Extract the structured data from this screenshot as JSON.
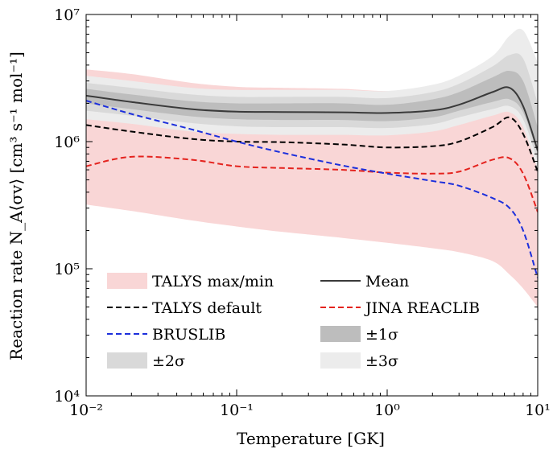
{
  "chart_data": {
    "type": "area",
    "xlabel": "Temperature [GK]",
    "ylabel": "Reaction rate N_A⟨σv⟩ [cm³ s⁻¹ mol⁻¹]",
    "x_scale": "log",
    "y_scale": "log",
    "xlim": [
      0.01,
      10
    ],
    "ylim": [
      10000,
      10000000
    ],
    "x_tick_labels": [
      "10⁻²",
      "10⁻¹",
      "10⁰",
      "10¹"
    ],
    "y_tick_labels": [
      "10⁴",
      "10⁵",
      "10⁶",
      "10⁷"
    ],
    "x_ticks": [
      0.01,
      0.1,
      1,
      10
    ],
    "y_ticks": [
      10000,
      100000,
      1000000,
      10000000
    ],
    "grid": false,
    "legend_position": "bottom-left",
    "x": [
      0.01,
      0.02,
      0.05,
      0.1,
      0.2,
      0.5,
      1.0,
      2.0,
      3.0,
      5.0,
      6.5,
      8.0,
      10.0
    ],
    "bands": [
      {
        "name": "TALYS max/min",
        "color": "#f9d6d6",
        "lower": [
          320000,
          285000,
          240000,
          215000,
          195000,
          175000,
          160000,
          145000,
          135000,
          115000,
          90000,
          70000,
          50000
        ],
        "upper": [
          3700000,
          3400000,
          2900000,
          2700000,
          2650000,
          2600000,
          2500000,
          2700000,
          3200000,
          4300000,
          5500000,
          5000000,
          2800000
        ]
      },
      {
        "name": "±3σ",
        "color": "#ececec",
        "lower": [
          1500000,
          1380000,
          1200000,
          1150000,
          1130000,
          1130000,
          1120000,
          1200000,
          1350000,
          1600000,
          1700000,
          1300000,
          600000
        ],
        "upper": [
          3300000,
          3000000,
          2650000,
          2550000,
          2550000,
          2550000,
          2500000,
          2800000,
          3300000,
          4700000,
          6800000,
          7500000,
          4200000
        ]
      },
      {
        "name": "±2σ",
        "color": "#d9d9d9",
        "lower": [
          1750000,
          1600000,
          1400000,
          1320000,
          1300000,
          1300000,
          1280000,
          1370000,
          1550000,
          1800000,
          1900000,
          1500000,
          700000
        ],
        "upper": [
          2900000,
          2650000,
          2350000,
          2250000,
          2250000,
          2250000,
          2200000,
          2450000,
          2850000,
          3900000,
          4800000,
          4500000,
          2000000
        ]
      },
      {
        "name": "±1σ",
        "color": "#bdbdbd",
        "lower": [
          2000000,
          1800000,
          1580000,
          1500000,
          1480000,
          1480000,
          1450000,
          1550000,
          1750000,
          2050000,
          2150000,
          1700000,
          800000
        ],
        "upper": [
          2600000,
          2350000,
          2080000,
          2000000,
          2000000,
          2000000,
          1950000,
          2150000,
          2450000,
          3200000,
          3600000,
          3000000,
          1300000
        ]
      }
    ],
    "series": [
      {
        "name": "Mean",
        "style": "solid",
        "color": "#3a3a3a",
        "values": [
          2300000,
          2050000,
          1800000,
          1720000,
          1710000,
          1700000,
          1680000,
          1760000,
          1950000,
          2450000,
          2650000,
          1900000,
          850000
        ]
      },
      {
        "name": "TALYS default",
        "style": "dashed",
        "color": "#000000",
        "values": [
          1350000,
          1200000,
          1050000,
          1000000,
          990000,
          950000,
          900000,
          920000,
          1000000,
          1300000,
          1550000,
          1150000,
          580000
        ]
      },
      {
        "name": "JINA REACLIB",
        "style": "dashed",
        "color": "#e4231e",
        "values": [
          640000,
          760000,
          720000,
          640000,
          620000,
          600000,
          570000,
          560000,
          580000,
          720000,
          740000,
          560000,
          280000
        ]
      },
      {
        "name": "BRUSLIB",
        "style": "dashed",
        "color": "#1c2fdc",
        "values": [
          2100000,
          1650000,
          1250000,
          1000000,
          820000,
          650000,
          560000,
          490000,
          450000,
          360000,
          300000,
          200000,
          85000
        ]
      }
    ]
  },
  "legend": {
    "items": [
      {
        "label": "TALYS max/min",
        "kind": "band",
        "color": "#f9d6d6"
      },
      {
        "label": "Mean",
        "kind": "line",
        "dash": "solid",
        "color": "#3a3a3a"
      },
      {
        "label": "TALYS default",
        "kind": "line",
        "dash": "dashed",
        "color": "#000000"
      },
      {
        "label": "JINA REACLIB",
        "kind": "line",
        "dash": "dashed",
        "color": "#e4231e"
      },
      {
        "label": "BRUSLIB",
        "kind": "line",
        "dash": "dashed",
        "color": "#1c2fdc"
      },
      {
        "label": "±1σ",
        "kind": "band",
        "color": "#bdbdbd"
      },
      {
        "label": "±2σ",
        "kind": "band",
        "color": "#d9d9d9"
      },
      {
        "label": "±3σ",
        "kind": "band",
        "color": "#ececec"
      }
    ]
  }
}
